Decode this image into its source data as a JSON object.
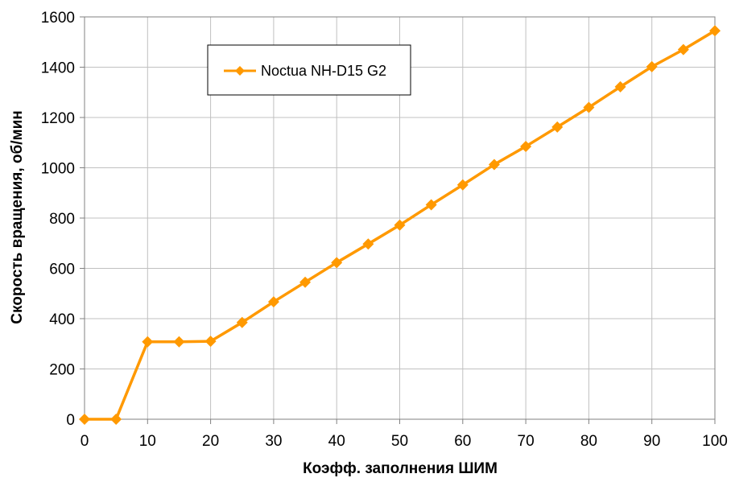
{
  "chart_data": {
    "type": "line",
    "xlabel": "Коэфф. заполнения ШИМ",
    "ylabel": "Скорость вращения, об/мин",
    "xlim": [
      0,
      100
    ],
    "ylim": [
      0,
      1600
    ],
    "x_ticks": [
      0,
      10,
      20,
      30,
      40,
      50,
      60,
      70,
      80,
      90,
      100
    ],
    "y_ticks": [
      0,
      200,
      400,
      600,
      800,
      1000,
      1200,
      1400,
      1600
    ],
    "grid": true,
    "legend_position": "top-left",
    "series": [
      {
        "name": "Noctua NH-D15 G2",
        "color": "#FF9900",
        "marker": "diamond",
        "x": [
          0,
          5,
          10,
          15,
          20,
          25,
          30,
          35,
          40,
          45,
          50,
          55,
          60,
          65,
          70,
          75,
          80,
          85,
          90,
          95,
          100
        ],
        "y": [
          0,
          0,
          308,
          308,
          310,
          385,
          467,
          545,
          623,
          697,
          772,
          853,
          932,
          1013,
          1085,
          1162,
          1240,
          1322,
          1402,
          1470,
          1545
        ]
      }
    ]
  }
}
